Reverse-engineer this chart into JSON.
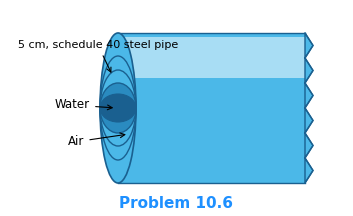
{
  "title": "Problem 10.6",
  "title_color": "#1E90FF",
  "title_fontsize": 11,
  "label_air": "Air",
  "label_water": "Water",
  "label_pipe": "5 cm, schedule 40 steel pipe",
  "label_fontsize": 8.5,
  "pipe_color_outer": "#4BB8E8",
  "pipe_color_inner": "#5DC0F0",
  "pipe_color_light": "#A8D8F0",
  "pipe_highlight": "#D0EEFA",
  "pipe_dark": "#2A8BC0",
  "pipe_border": "#1A6090",
  "bg_color": "#ffffff"
}
